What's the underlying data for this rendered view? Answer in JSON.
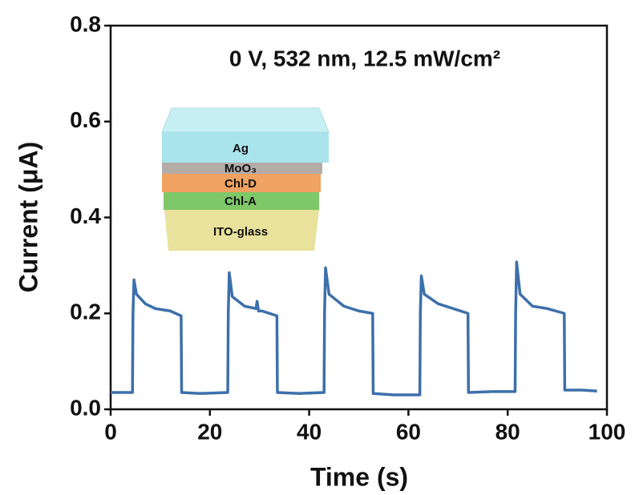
{
  "chart_data": {
    "type": "line",
    "annotation": "0 V, 532 nm, 12.5 mW/cm²",
    "x_label": "Time (s)",
    "y_label": "Current (μA)",
    "inset_labels": [
      "Ag",
      "MoO₃",
      "Chl-D",
      "Chl-A",
      "ITO-glass"
    ],
    "color": "#3d6faa",
    "x": [
      0,
      4.4,
      4.5,
      4.7,
      5.2,
      7,
      9,
      12,
      14.2,
      14.3,
      18,
      23.6,
      23.7,
      23.9,
      24.5,
      27,
      29.3,
      29.5,
      29.8,
      30.5,
      33.5,
      33.6,
      38,
      43.0,
      43.1,
      43.3,
      44,
      47,
      50,
      52.8,
      52.9,
      57,
      62.3,
      62.4,
      62.6,
      63.2,
      66,
      69,
      72,
      72.1,
      77,
      81.5,
      81.6,
      81.8,
      82.5,
      85,
      88,
      91.4,
      91.5,
      95,
      98
    ],
    "values": [
      0.035,
      0.035,
      0.2,
      0.27,
      0.24,
      0.22,
      0.21,
      0.205,
      0.195,
      0.035,
      0.033,
      0.035,
      0.2,
      0.285,
      0.235,
      0.215,
      0.21,
      0.225,
      0.205,
      0.205,
      0.195,
      0.035,
      0.033,
      0.035,
      0.2,
      0.295,
      0.24,
      0.215,
      0.205,
      0.2,
      0.033,
      0.03,
      0.03,
      0.2,
      0.278,
      0.24,
      0.22,
      0.21,
      0.2,
      0.035,
      0.037,
      0.037,
      0.2,
      0.307,
      0.24,
      0.215,
      0.21,
      0.2,
      0.04,
      0.04,
      0.038
    ],
    "xlim": [
      0,
      100
    ],
    "xticks": [
      0,
      20,
      40,
      60,
      80,
      100
    ],
    "ylim": [
      0,
      0.8
    ],
    "yticks": [
      {
        "value": 0,
        "label": "0.0"
      },
      0.2,
      0.4,
      0.6,
      0.8
    ]
  }
}
